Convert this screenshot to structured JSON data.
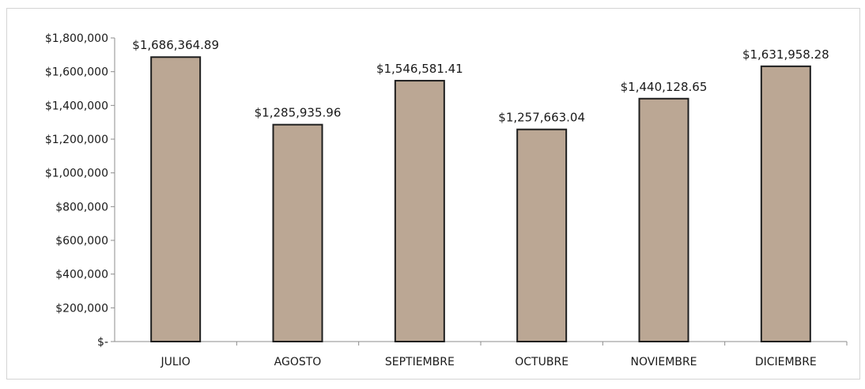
{
  "chart_data": {
    "type": "bar",
    "title": "",
    "xlabel": "",
    "ylabel": "",
    "categories": [
      "JULIO",
      "AGOSTO",
      "SEPTIEMBRE",
      "OCTUBRE",
      "NOVIEMBRE",
      "DICIEMBRE"
    ],
    "values": [
      1686364.89,
      1285935.96,
      1546581.41,
      1257663.04,
      1440128.65,
      1631958.28
    ],
    "data_labels": [
      "$1,686,364.89",
      "$1,285,935.96",
      "$1,546,581.41",
      "$1,257,663.04",
      "$1,440,128.65",
      "$1,631,958.28"
    ],
    "ylim": [
      0,
      1800000
    ],
    "y_ticks": [
      0,
      200000,
      400000,
      600000,
      800000,
      1000000,
      1200000,
      1400000,
      1600000,
      1800000
    ],
    "y_tick_labels": [
      "$-",
      "$200,000",
      "$400,000",
      "$600,000",
      "$800,000",
      "$1,000,000",
      "$1,200,000",
      "$1,400,000",
      "$1,600,000",
      "$1,800,000"
    ],
    "grid": false,
    "legend": "none",
    "colors": {
      "bar_fill": "#bba794",
      "bar_stroke": "#1e1e1e",
      "axis": "#8c8c8c"
    }
  }
}
